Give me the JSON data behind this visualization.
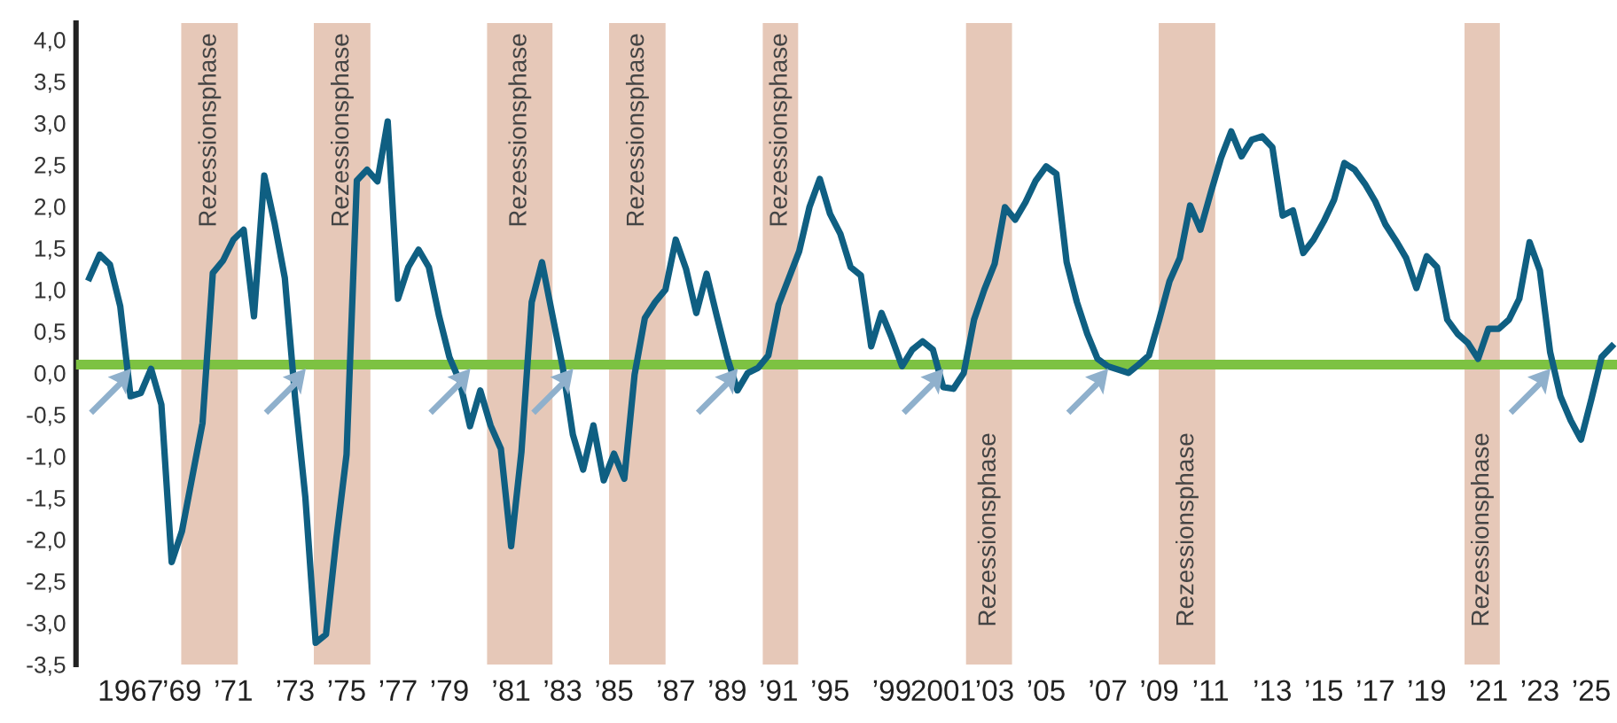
{
  "chart_data": {
    "type": "line",
    "categories": [
      null,
      null,
      null,
      null,
      "1967",
      null,
      null,
      null,
      null,
      "’69",
      null,
      null,
      null,
      null,
      "’71",
      null,
      null,
      null,
      null,
      null,
      "’73",
      null,
      null,
      null,
      null,
      "’75",
      null,
      null,
      null,
      null,
      "’77",
      null,
      null,
      null,
      null,
      "’79",
      null,
      null,
      null,
      null,
      null,
      "’81",
      null,
      null,
      null,
      null,
      "’83",
      null,
      null,
      null,
      null,
      "’85",
      null,
      null,
      null,
      null,
      null,
      "’87",
      null,
      null,
      null,
      null,
      "’89",
      null,
      null,
      null,
      null,
      "’91",
      null,
      null,
      null,
      null,
      "’95",
      null,
      null,
      null,
      null,
      null,
      "’99",
      null,
      null,
      null,
      null,
      "2001",
      null,
      null,
      null,
      null,
      "’03",
      null,
      null,
      null,
      null,
      "’05",
      null,
      null,
      null,
      null,
      null,
      "’07",
      null,
      null,
      null,
      null,
      "’09",
      null,
      null,
      null,
      null,
      "’11",
      null,
      null,
      null,
      null,
      null,
      "’13",
      null,
      null,
      null,
      null,
      "’15",
      null,
      null,
      null,
      null,
      "’17",
      null,
      null,
      null,
      null,
      "’19",
      null,
      null,
      null,
      null,
      null,
      "’21",
      null,
      null,
      null,
      null,
      "’23",
      null,
      null,
      null,
      null,
      "’25",
      null,
      null
    ],
    "series": [
      {
        "color": "#0f5f82",
        "values": [
          1.14,
          1.42,
          1.3,
          0.8,
          -0.28,
          -0.24,
          0.05,
          -0.38,
          -2.27,
          -1.9,
          -1.25,
          -0.6,
          1.2,
          1.35,
          1.6,
          1.72,
          0.68,
          2.37,
          1.8,
          1.14,
          -0.3,
          -1.5,
          -3.24,
          -3.14,
          -2.0,
          -0.98,
          2.31,
          2.44,
          2.3,
          3.02,
          0.89,
          1.27,
          1.48,
          1.27,
          0.68,
          0.19,
          -0.1,
          -0.64,
          -0.21,
          -0.63,
          -0.91,
          -2.08,
          -0.95,
          0.85,
          1.33,
          0.7,
          0.08,
          -0.74,
          -1.16,
          -0.63,
          -1.29,
          -0.97,
          -1.27,
          -0.02,
          0.66,
          0.85,
          1.0,
          1.6,
          1.25,
          0.72,
          1.19,
          0.68,
          0.19,
          -0.21,
          0.0,
          0.06,
          0.21,
          0.82,
          1.14,
          1.46,
          1.99,
          2.33,
          1.91,
          1.67,
          1.27,
          1.17,
          0.32,
          0.72,
          0.42,
          0.08,
          0.28,
          0.38,
          0.28,
          -0.17,
          -0.19,
          0.0,
          0.64,
          1.0,
          1.31,
          1.99,
          1.84,
          2.05,
          2.31,
          2.48,
          2.39,
          1.33,
          0.85,
          0.47,
          0.17,
          0.08,
          0.04,
          0.0,
          0.1,
          0.21,
          0.64,
          1.1,
          1.38,
          2.01,
          1.72,
          2.16,
          2.58,
          2.9,
          2.6,
          2.8,
          2.84,
          2.71,
          1.89,
          1.95,
          1.44,
          1.6,
          1.82,
          2.08,
          2.52,
          2.44,
          2.27,
          2.06,
          1.78,
          1.59,
          1.38,
          1.02,
          1.4,
          1.27,
          0.64,
          0.47,
          0.36,
          0.17,
          0.53,
          0.53,
          0.64,
          0.89,
          1.57,
          1.23,
          0.25,
          -0.28,
          -0.57,
          -0.8,
          -0.32,
          0.19,
          0.32
        ]
      },
      {
        "type": "scatter",
        "color": "#8fb0cc",
        "values": [
          null,
          null,
          -0.2,
          null,
          null,
          null,
          null,
          null,
          null,
          null,
          null,
          null,
          null,
          null,
          null,
          null,
          null,
          null,
          null,
          -0.2,
          null,
          null,
          null,
          null,
          null,
          null,
          null,
          null,
          null,
          null,
          null,
          null,
          null,
          null,
          null,
          -0.2,
          null,
          null,
          null,
          null,
          null,
          null,
          null,
          null,
          null,
          -0.2,
          null,
          null,
          null,
          null,
          null,
          null,
          null,
          null,
          null,
          null,
          null,
          null,
          null,
          null,
          null,
          -0.2,
          null,
          null,
          null,
          null,
          null,
          null,
          null,
          null,
          null,
          null,
          null,
          null,
          null,
          null,
          null,
          null,
          null,
          null,
          null,
          -0.2,
          null,
          null,
          null,
          null,
          null,
          null,
          null,
          null,
          null,
          null,
          null,
          null,
          null,
          null,
          null,
          -0.2,
          null,
          null,
          null,
          null,
          null,
          null,
          null,
          null,
          null,
          null,
          null,
          null,
          null,
          null,
          null,
          null,
          null,
          null,
          null,
          null,
          null,
          null,
          null,
          null,
          null,
          null,
          null,
          null,
          null,
          null,
          null,
          null,
          null,
          null,
          null,
          null,
          null,
          null,
          null,
          null,
          null,
          null,
          -0.2,
          null,
          null,
          null,
          null,
          null,
          null,
          null,
          null
        ]
      }
    ],
    "ylim": [
      -3.5,
      4.2
    ],
    "yticks": [
      {
        "value": -3.5,
        "label": "-3,5"
      },
      {
        "value": -3.0,
        "label": "-3,0"
      },
      {
        "value": -2.5,
        "label": "-2,5"
      },
      {
        "value": -2.0,
        "label": "-2,0"
      },
      {
        "value": -1.5,
        "label": "-1,5"
      },
      {
        "value": -1.0,
        "label": "-1,0"
      },
      {
        "value": -0.5,
        "label": "-0,5"
      },
      {
        "value": 0.0,
        "label": "0,0"
      },
      {
        "value": 0.5,
        "label": "0,5"
      },
      {
        "value": 1.0,
        "label": "1,0"
      },
      {
        "value": 1.5,
        "label": "1,5"
      },
      {
        "value": 2.0,
        "label": "2,0"
      },
      {
        "value": 2.5,
        "label": "2,5"
      },
      {
        "value": 3.0,
        "label": "3,0"
      },
      {
        "value": 3.5,
        "label": "3,5"
      },
      {
        "value": 4.0,
        "label": "4,0"
      }
    ],
    "ref_lines": [
      {
        "axis": "y",
        "value": 0.1,
        "color": "#7dc242"
      }
    ],
    "annotations": [
      "Rezessionsphase",
      "Rezessionsphase",
      "Rezessionsphase",
      "Rezessionsphase",
      "Rezessionsphase",
      "Rezessionsphase",
      "Rezessionsphase",
      "Rezessionsphase"
    ],
    "grid": false,
    "line_style": "solid"
  }
}
